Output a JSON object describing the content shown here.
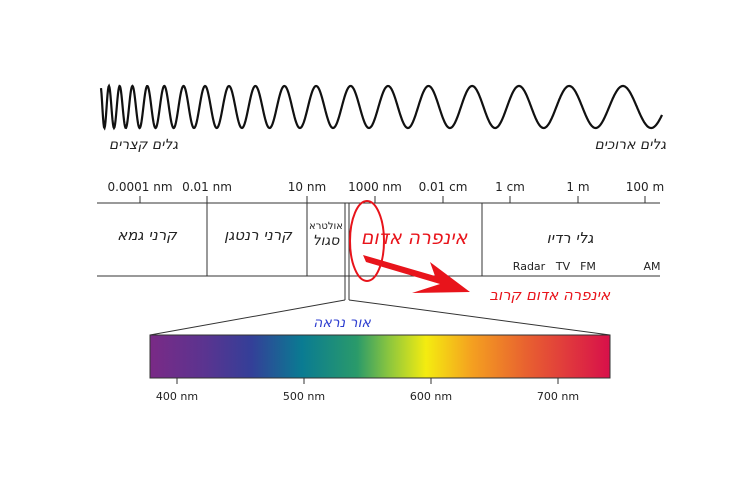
{
  "wave_labels": {
    "short": "גלים קצרים",
    "long": "גלים ארוכים"
  },
  "scale_ticks": [
    "0.0001 nm",
    "0.01 nm",
    "10 nm",
    "1000 nm",
    "0.01 cm",
    "1 cm",
    "1 m",
    "100 m"
  ],
  "bands": {
    "gamma": "קרני גמא",
    "xray": "קרני רנטגן",
    "uv_line1": "אולטרא",
    "uv_line2": "סגול",
    "infrared": "אינפרה אדום",
    "radio": "גלי רדיו",
    "radio_sub": [
      "Radar",
      "TV",
      "FM",
      "AM"
    ]
  },
  "annotations": {
    "near_infrared": "אינפרה אדום קרוב",
    "visible": "אור נראה"
  },
  "visible_ticks": [
    "400 nm",
    "500 nm",
    "600 nm",
    "700 nm"
  ],
  "colors": {
    "annotation": "#e8141b",
    "visible_label": "#2f3fd0",
    "line": "#333333"
  }
}
